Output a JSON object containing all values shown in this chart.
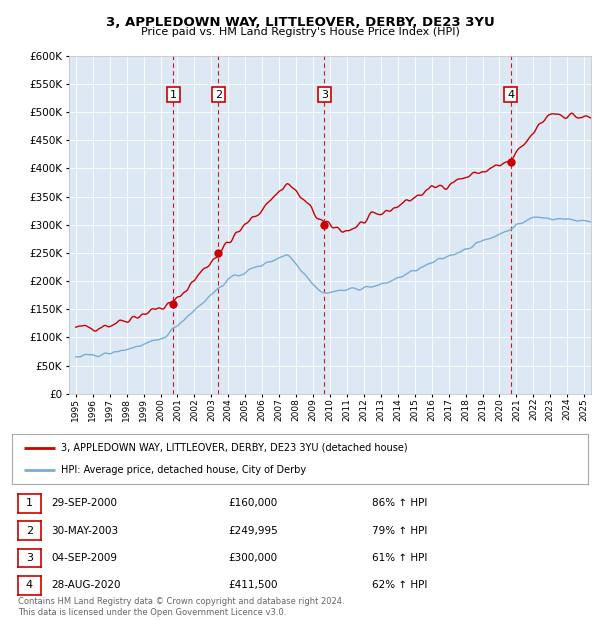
{
  "title1": "3, APPLEDOWN WAY, LITTLEOVER, DERBY, DE23 3YU",
  "title2": "Price paid vs. HM Land Registry's House Price Index (HPI)",
  "legend_line1": "3, APPLEDOWN WAY, LITTLEOVER, DERBY, DE23 3YU (detached house)",
  "legend_line2": "HPI: Average price, detached house, City of Derby",
  "sales": [
    {
      "num": 1,
      "date_num": 2000.75,
      "price": 160000,
      "label": "29-SEP-2000",
      "pct": "86% ↑ HPI"
    },
    {
      "num": 2,
      "date_num": 2003.42,
      "price": 249995,
      "label": "30-MAY-2003",
      "pct": "79% ↑ HPI"
    },
    {
      "num": 3,
      "date_num": 2009.67,
      "price": 300000,
      "label": "04-SEP-2009",
      "pct": "61% ↑ HPI"
    },
    {
      "num": 4,
      "date_num": 2020.67,
      "price": 411500,
      "label": "28-AUG-2020",
      "pct": "62% ↑ HPI"
    }
  ],
  "table_rows": [
    [
      "1",
      "29-SEP-2000",
      "£160,000",
      "86% ↑ HPI"
    ],
    [
      "2",
      "30-MAY-2003",
      "£249,995",
      "79% ↑ HPI"
    ],
    [
      "3",
      "04-SEP-2009",
      "£300,000",
      "61% ↑ HPI"
    ],
    [
      "4",
      "28-AUG-2020",
      "£411,500",
      "62% ↑ HPI"
    ]
  ],
  "footer": "Contains HM Land Registry data © Crown copyright and database right 2024.\nThis data is licensed under the Open Government Licence v3.0.",
  "red_color": "#cc0000",
  "blue_color": "#7aadd4",
  "bg_color": "#dce9f5",
  "ylim": [
    0,
    600000
  ],
  "yticks": [
    0,
    50000,
    100000,
    150000,
    200000,
    250000,
    300000,
    350000,
    400000,
    450000,
    500000,
    550000,
    600000
  ],
  "xlim_start": 1994.6,
  "xlim_end": 2025.4
}
